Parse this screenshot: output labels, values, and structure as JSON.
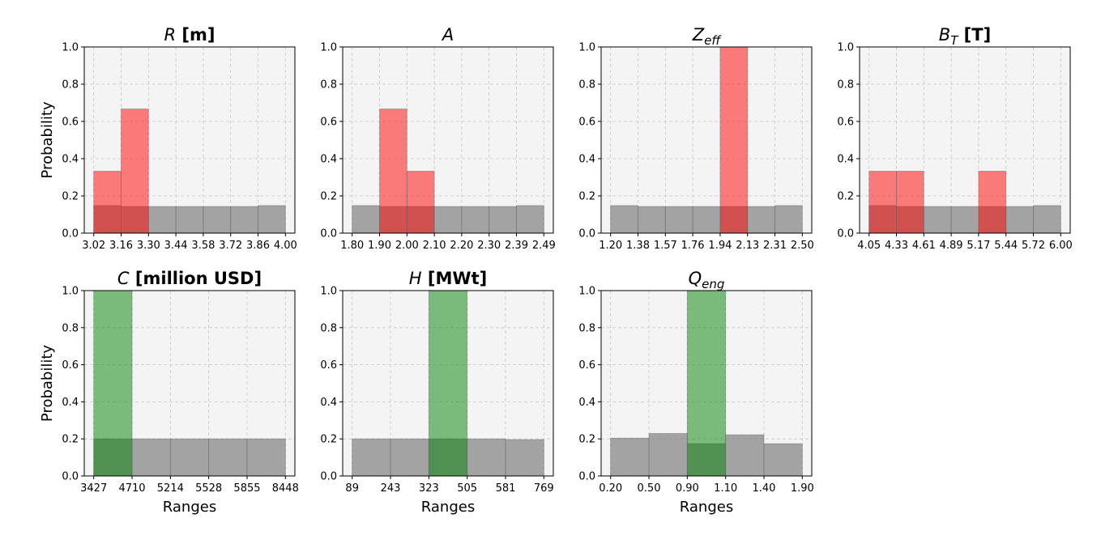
{
  "chart_data": [
    {
      "type": "bar",
      "title": {
        "sym": "R",
        "sub": "",
        "unit": "[m]"
      },
      "tick_labels": [
        "3.02",
        "3.16",
        "3.30",
        "3.44",
        "3.58",
        "3.72",
        "3.86",
        "4.00"
      ],
      "series": [
        {
          "values": [
            0.148,
            0.143,
            0.143,
            0.143,
            0.143,
            0.143,
            0.148
          ]
        },
        {
          "values": [
            0.333,
            0.667,
            0,
            0,
            0,
            0,
            0
          ]
        }
      ],
      "ylim": [
        0,
        1
      ],
      "yticks": [
        "0.0",
        "0.2",
        "0.4",
        "0.6",
        "0.8",
        "1.0"
      ],
      "ylabel": "Probability",
      "xlabel": "",
      "highlight_color": "#ff0000",
      "base_color": "#808080",
      "grid": true
    },
    {
      "type": "bar",
      "title": {
        "sym": "A",
        "sub": "",
        "unit": ""
      },
      "tick_labels": [
        "1.80",
        "1.90",
        "2.00",
        "2.10",
        "2.20",
        "2.30",
        "2.39",
        "2.49"
      ],
      "series": [
        {
          "values": [
            0.148,
            0.143,
            0.143,
            0.143,
            0.143,
            0.143,
            0.148
          ]
        },
        {
          "values": [
            0,
            0.667,
            0.333,
            0,
            0,
            0,
            0
          ]
        }
      ],
      "ylim": [
        0,
        1
      ],
      "yticks": [
        "0.0",
        "0.2",
        "0.4",
        "0.6",
        "0.8",
        "1.0"
      ],
      "ylabel": "",
      "xlabel": "",
      "highlight_color": "#ff0000",
      "base_color": "#808080",
      "grid": true
    },
    {
      "type": "bar",
      "title": {
        "sym": "Z",
        "sub": "eff",
        "unit": ""
      },
      "tick_labels": [
        "1.20",
        "1.38",
        "1.57",
        "1.76",
        "1.94",
        "2.13",
        "2.31",
        "2.50"
      ],
      "series": [
        {
          "values": [
            0.148,
            0.143,
            0.143,
            0.143,
            0.143,
            0.143,
            0.148
          ]
        },
        {
          "values": [
            0,
            0,
            0,
            0,
            1.0,
            0,
            0
          ]
        }
      ],
      "ylim": [
        0,
        1
      ],
      "yticks": [
        "0.0",
        "0.2",
        "0.4",
        "0.6",
        "0.8",
        "1.0"
      ],
      "ylabel": "",
      "xlabel": "",
      "highlight_color": "#ff0000",
      "base_color": "#808080",
      "grid": true
    },
    {
      "type": "bar",
      "title": {
        "sym": "B",
        "sub": "T",
        "unit": "[T]"
      },
      "tick_labels": [
        "4.05",
        "4.33",
        "4.61",
        "4.89",
        "5.17",
        "5.44",
        "5.72",
        "6.00"
      ],
      "series": [
        {
          "values": [
            0.148,
            0.143,
            0.143,
            0.143,
            0.143,
            0.143,
            0.148
          ]
        },
        {
          "values": [
            0.333,
            0.333,
            0,
            0,
            0.333,
            0,
            0
          ]
        }
      ],
      "ylim": [
        0,
        1
      ],
      "yticks": [
        "0.0",
        "0.2",
        "0.4",
        "0.6",
        "0.8",
        "1.0"
      ],
      "ylabel": "",
      "xlabel": "",
      "highlight_color": "#ff0000",
      "base_color": "#808080",
      "grid": true
    },
    {
      "type": "bar",
      "title": {
        "sym": "C",
        "sub": "",
        "unit": "[million USD]"
      },
      "tick_labels": [
        "3427",
        "4710",
        "5214",
        "5528",
        "5855",
        "8448"
      ],
      "series": [
        {
          "values": [
            0.2,
            0.2,
            0.2,
            0.2,
            0.2
          ]
        },
        {
          "values": [
            1.0,
            0,
            0,
            0,
            0
          ]
        }
      ],
      "ylim": [
        0,
        1
      ],
      "yticks": [
        "0.0",
        "0.2",
        "0.4",
        "0.6",
        "0.8",
        "1.0"
      ],
      "ylabel": "Probability",
      "xlabel": "Ranges",
      "highlight_color": "#008000",
      "base_color": "#808080",
      "grid": true
    },
    {
      "type": "bar",
      "title": {
        "sym": "H",
        "sub": "",
        "unit": "[MWt]"
      },
      "tick_labels": [
        "89",
        "243",
        "323",
        "505",
        "581",
        "769"
      ],
      "series": [
        {
          "values": [
            0.2,
            0.2,
            0.2,
            0.2,
            0.196
          ]
        },
        {
          "values": [
            0,
            0,
            1.0,
            0,
            0
          ]
        }
      ],
      "ylim": [
        0,
        1
      ],
      "yticks": [
        "0.0",
        "0.2",
        "0.4",
        "0.6",
        "0.8",
        "1.0"
      ],
      "ylabel": "",
      "xlabel": "Ranges",
      "highlight_color": "#008000",
      "base_color": "#808080",
      "grid": true
    },
    {
      "type": "bar",
      "title": {
        "sym": "Q",
        "sub": "eng",
        "unit": ""
      },
      "tick_labels": [
        "0.20",
        "0.50",
        "0.90",
        "1.10",
        "1.40",
        "1.90"
      ],
      "series": [
        {
          "values": [
            0.204,
            0.229,
            0.174,
            0.222,
            0.174
          ]
        },
        {
          "values": [
            0,
            0,
            1.0,
            0,
            0
          ]
        }
      ],
      "ylim": [
        0,
        1
      ],
      "yticks": [
        "0.0",
        "0.2",
        "0.4",
        "0.6",
        "0.8",
        "1.0"
      ],
      "ylabel": "",
      "xlabel": "Ranges",
      "highlight_color": "#008000",
      "base_color": "#808080",
      "grid": true
    }
  ]
}
